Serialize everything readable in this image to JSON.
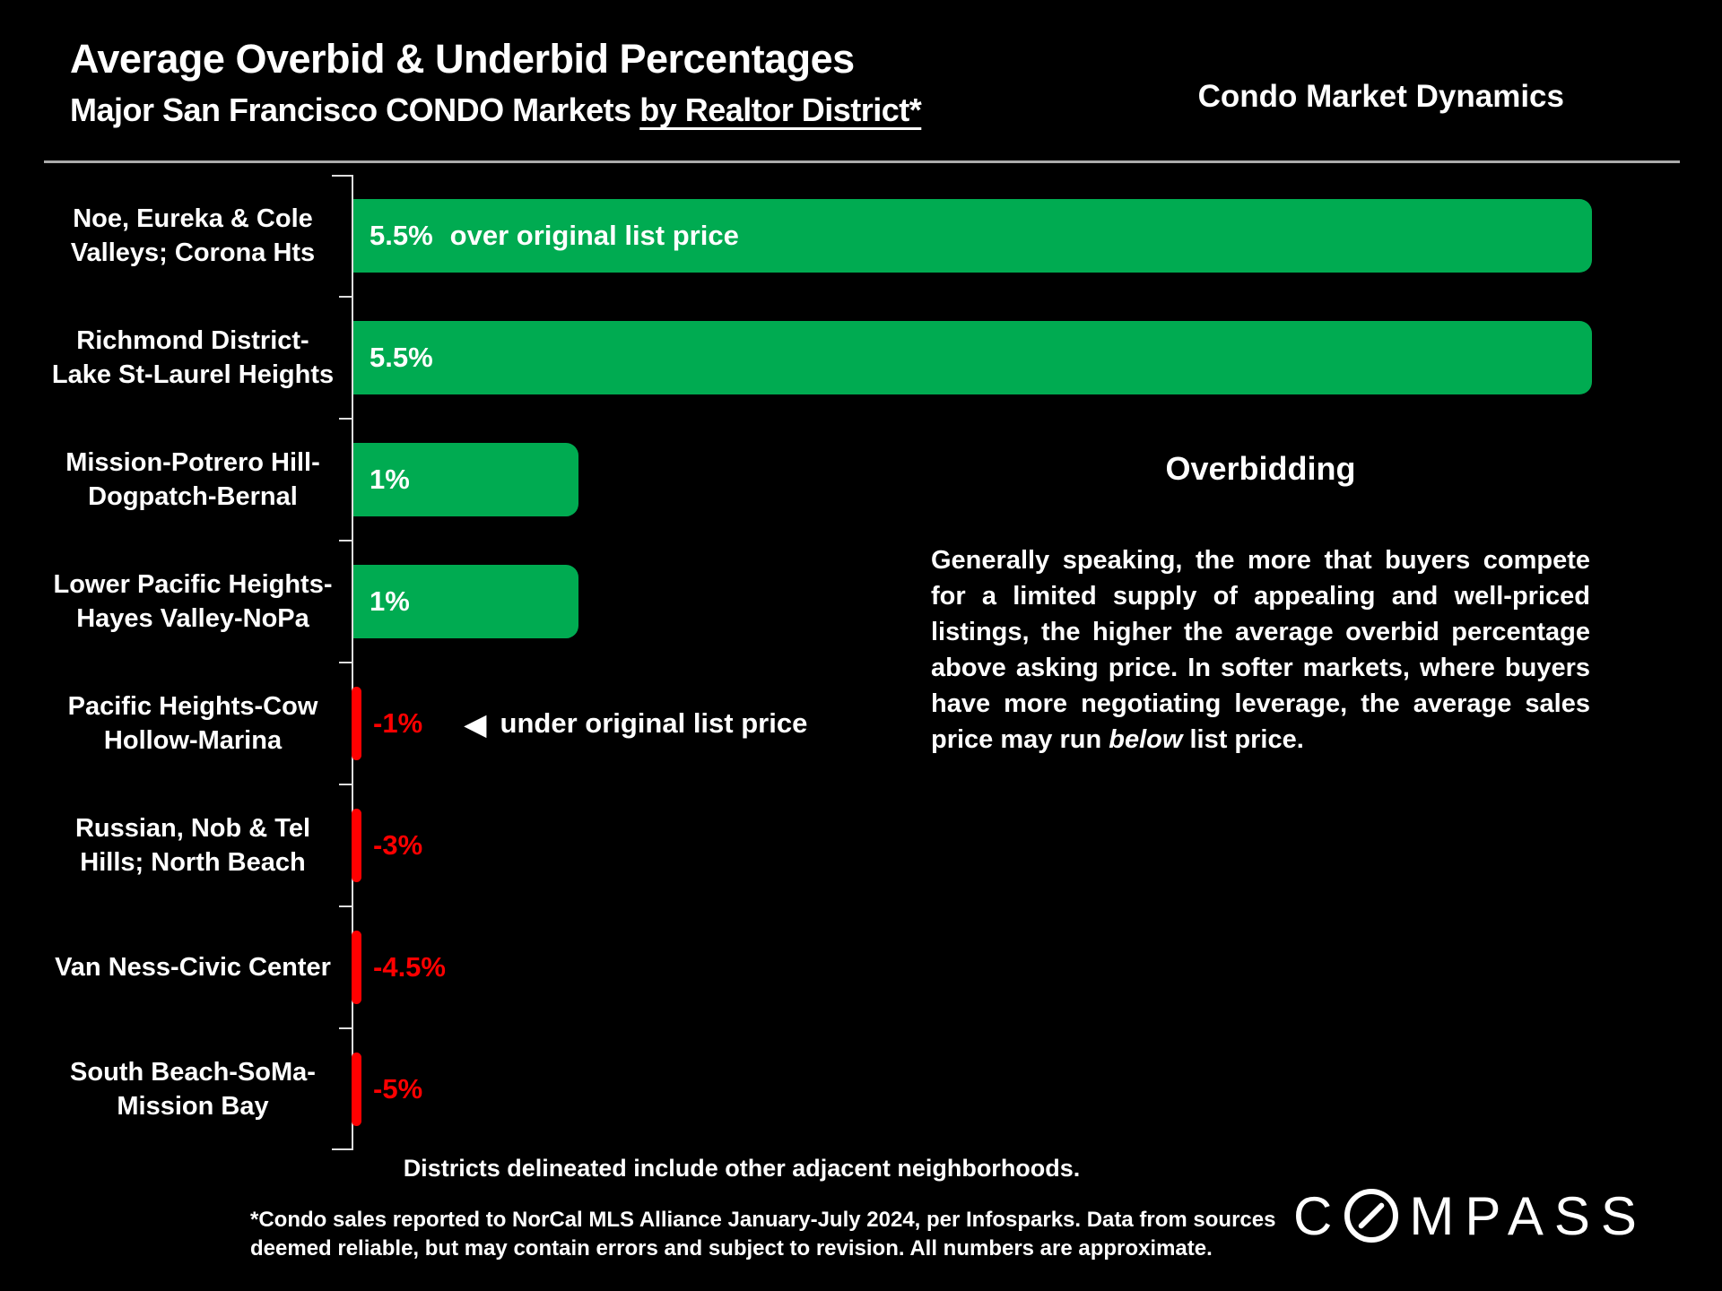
{
  "header": {
    "title": "Average Overbid & Underbid Percentages",
    "subtitle_prefix": "Major San Francisco CONDO Markets ",
    "subtitle_underlined": "by Realtor District*",
    "corner_label": "Condo Market Dynamics"
  },
  "chart_data": {
    "type": "bar",
    "orientation": "horizontal",
    "title": "Average Overbid & Underbid Percentages",
    "subtitle": "Major San Francisco CONDO Markets by Realtor District*",
    "unit": "percent over/under original list price",
    "categories": [
      "Noe, Eureka & Cole Valleys; Corona Hts",
      "Richmond District-Lake St-Laurel Heights",
      "Mission-Potrero Hill-Dogpatch-Bernal",
      "Lower Pacific Heights-Hayes Valley-NoPa",
      "Pacific Heights-Cow Hollow-Marina",
      "Russian, Nob & Tel Hills; North Beach",
      "Van Ness-Civic Center",
      "South Beach-SoMa-Mission Bay"
    ],
    "values": [
      5.5,
      5.5,
      1,
      1,
      -1,
      -3,
      -4.5,
      -5
    ],
    "xlim": [
      0,
      5.5
    ],
    "grid": false,
    "legend": false,
    "negative_bars_rendered_as_slivers": true,
    "annotation_arrow": "◀",
    "rows": [
      {
        "label_lines": "Noe, Eureka & Cole\nValleys; Corona Hts",
        "value": 5.5,
        "value_label": "5.5%",
        "bar_note": "over original list price"
      },
      {
        "label_lines": "Richmond District-\nLake St-Laurel Heights",
        "value": 5.5,
        "value_label": "5.5%"
      },
      {
        "label_lines": "Mission-Potrero Hill-\nDogpatch-Bernal",
        "value": 1,
        "value_label": "1%"
      },
      {
        "label_lines": "Lower Pacific Heights-\nHayes Valley-NoPa",
        "value": 1,
        "value_label": "1%"
      },
      {
        "label_lines": "Pacific Heights-Cow\nHollow-Marina",
        "value": -1,
        "value_label": "-1%",
        "annotation": "under original list price"
      },
      {
        "label_lines": "Russian, Nob & Tel\nHills; North Beach",
        "value": -3,
        "value_label": "-3%"
      },
      {
        "label_lines": "Van Ness-Civic Center",
        "value": -4.5,
        "value_label": "-4.5%"
      },
      {
        "label_lines": "South Beach-SoMa-\nMission Bay",
        "value": -5,
        "value_label": "-5%"
      }
    ],
    "colors": {
      "positive_bar": "#00AB51",
      "negative_bar": "#FF0000",
      "axis": "#DEDEDE",
      "background": "#000000",
      "text": "#FFFFFF"
    }
  },
  "info": {
    "heading": "Overbidding",
    "paragraph_before": "Generally speaking, the more that buyers compete for a limited supply of appealing and well-priced listings, the higher the average overbid percentage above asking price. In softer markets, where buyers have more negotiating leverage, the average sales price may run ",
    "paragraph_italic": "below",
    "paragraph_after": " list price."
  },
  "footer": {
    "districts_note": "Districts delineated include other adjacent neighborhoods.",
    "footnote_line1": "*Condo sales reported to NorCal MLS Alliance January-July 2024, per Infosparks. Data from sources",
    "footnote_line2": "deemed reliable, but may contain errors and subject to revision. All numbers are approximate.",
    "logo_first": "C",
    "logo_rest": "MPASS",
    "logo_name": "COMPASS"
  }
}
